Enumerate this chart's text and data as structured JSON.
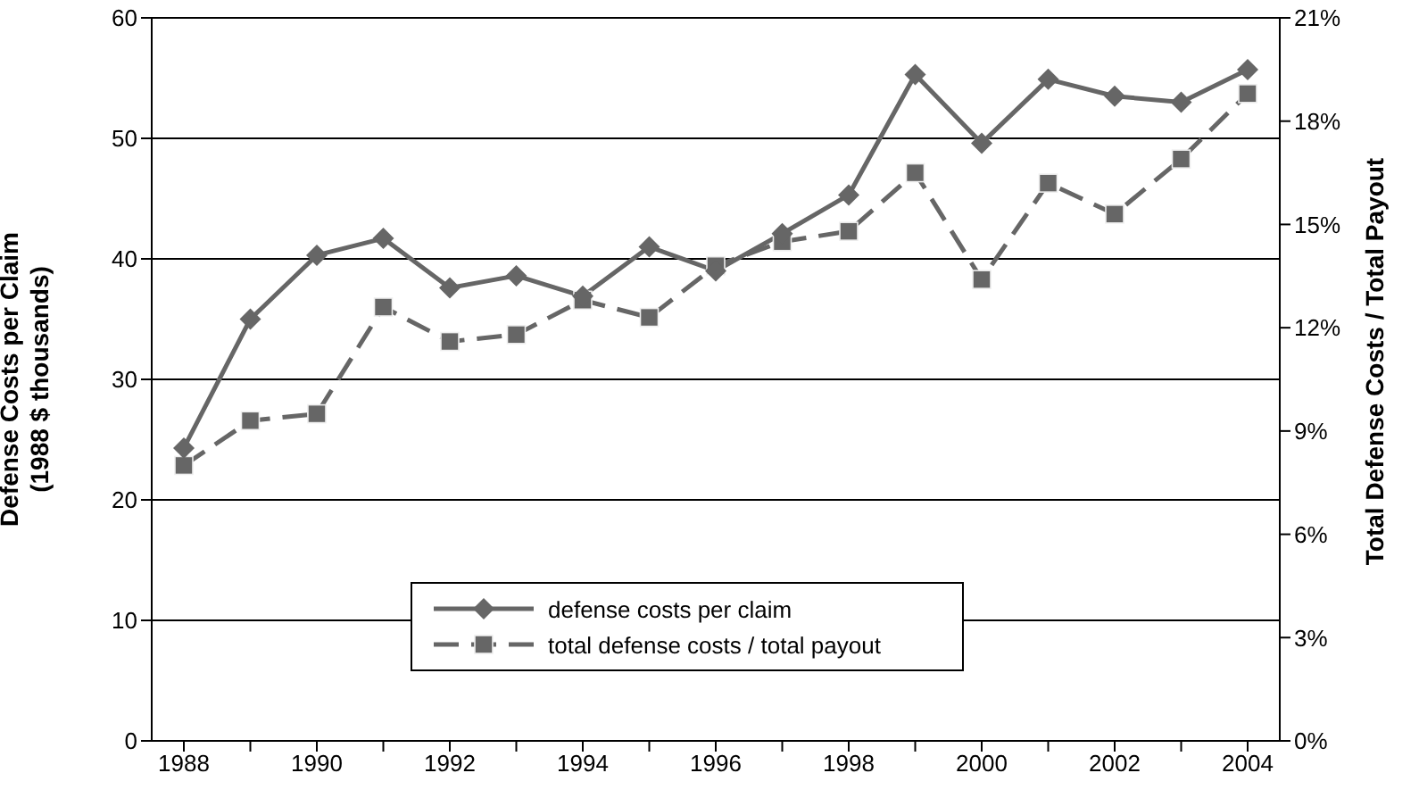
{
  "chart_data": {
    "type": "line",
    "ylabel": "Defense Costs per Claim\n(1988 $ thousands)",
    "y2label": "Total Defense Costs / Total Payout",
    "categories": [
      "1988",
      null,
      "1990",
      null,
      "1992",
      null,
      "1994",
      null,
      "1996",
      null,
      "1998",
      null,
      "2000",
      null,
      "2002",
      null,
      "2004"
    ],
    "series": [
      {
        "name": "defense costs per claim",
        "color": "#666666",
        "marker": "diamond",
        "line_style": "solid",
        "values": [
          24.3,
          35.0,
          40.3,
          41.7,
          37.6,
          38.6,
          36.9,
          41.0,
          39.0,
          42.1,
          45.3,
          55.3,
          49.6,
          54.9,
          53.5,
          53.0,
          55.7
        ]
      },
      {
        "name": "total defense costs / total payout",
        "color": "#666666",
        "marker": "square",
        "line_style": "dashed",
        "axis": "y2",
        "values": [
          8.0,
          9.3,
          9.5,
          12.6,
          11.6,
          11.8,
          12.8,
          12.3,
          13.8,
          14.5,
          14.8,
          16.5,
          13.4,
          16.2,
          15.3,
          16.9,
          18.8
        ]
      }
    ],
    "ylim": [
      0,
      60
    ],
    "yticks": [
      0,
      10,
      20,
      30,
      40,
      50,
      60
    ],
    "y2lim": [
      0,
      21
    ],
    "y2ticks": [
      {
        "value": 0,
        "label": "0%"
      },
      {
        "value": 3,
        "label": "3%"
      },
      {
        "value": 6,
        "label": "6%"
      },
      {
        "value": 9,
        "label": "9%"
      },
      {
        "value": 12,
        "label": "12%"
      },
      {
        "value": 15,
        "label": "15%"
      },
      {
        "value": 18,
        "label": "18%"
      },
      {
        "value": 21,
        "label": "21%"
      }
    ],
    "grid": "y",
    "legend": "bottom"
  }
}
